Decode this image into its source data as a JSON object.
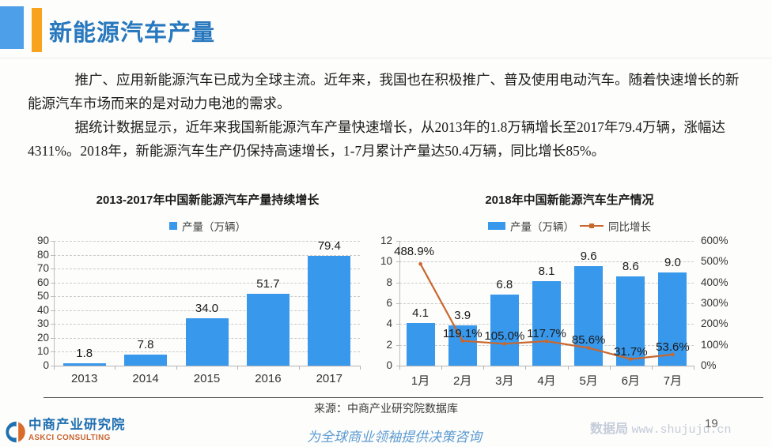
{
  "header": {
    "title": "新能源汽车产量",
    "accent_blue": "#4C9FE8",
    "accent_orange": "#F8A21D",
    "title_color": "#2878BE"
  },
  "body": {
    "paragraph1": "推广、应用新能源汽车已成为全球主流。近年来，我国也在积极推广、普及使用电动汽车。随着快速增长的新能源汽车市场而来的是对动力电池的需求。",
    "paragraph2": "据统计数据显示，近年来我国新能源汽车产量快速增长，从2013年的1.8万辆增长至2017年79.4万辆，涨幅达4311%。2018年，新能源汽车生产仍保持高速增长，1-7月累计产量达50.4万辆，同比增长85%。"
  },
  "chart_data": [
    {
      "type": "bar",
      "title": "2013-2017年中国新能源汽车产量持续增长",
      "legend": [
        {
          "label": "产量（万辆）",
          "color": "#3898EC"
        }
      ],
      "categories": [
        "2013",
        "2014",
        "2015",
        "2016",
        "2017"
      ],
      "values": [
        1.8,
        7.8,
        34.0,
        51.7,
        79.4
      ],
      "value_labels": [
        "1.8",
        "7.8",
        "34.0",
        "51.7",
        "79.4"
      ],
      "ylim": [
        0,
        90
      ],
      "ytick_step": 10,
      "bar_color": "#3898EC",
      "grid": "horizontal-dashed",
      "legend_position": "top"
    },
    {
      "type": "bar+line",
      "title": "2018年中国新能源汽车生产情况",
      "categories": [
        "1月",
        "2月",
        "3月",
        "4月",
        "5月",
        "6月",
        "7月"
      ],
      "series": [
        {
          "name": "产量（万辆）",
          "type": "bar",
          "axis": "left",
          "color": "#3898EC",
          "values": [
            4.1,
            3.9,
            6.8,
            8.1,
            9.6,
            8.6,
            9.0
          ],
          "value_labels": [
            "4.1",
            "3.9",
            "6.8",
            "8.1",
            "9.6",
            "8.6",
            "9.0"
          ]
        },
        {
          "name": "同比增长",
          "type": "line",
          "axis": "right",
          "color": "#C8682E",
          "values_pct": [
            488.9,
            119.1,
            105.0,
            117.7,
            85.6,
            31.7,
            53.6
          ],
          "value_labels": [
            "488.9%",
            "119.1%",
            "105.0%",
            "117.7%",
            "85.6%",
            "31.7%",
            "53.6%"
          ]
        }
      ],
      "left_axis": {
        "lim": [
          0,
          12
        ],
        "step": 2
      },
      "right_axis": {
        "lim_pct": [
          0,
          600
        ],
        "step_pct": 100,
        "tick_labels": [
          "0%",
          "100%",
          "200%",
          "300%",
          "400%",
          "500%",
          "600%"
        ]
      },
      "grid": "horizontal-dashed",
      "legend_position": "top"
    }
  ],
  "source": {
    "text": "来源：中商产业研究院数据库"
  },
  "footer": {
    "logo_title": "中商产业研究院",
    "logo_subtitle": "ASKCI CONSULTING",
    "tagline": "为全球商业领袖提供决策咨询",
    "watermark_site": "数据局",
    "watermark_url": "www.shujuju.cn",
    "page_number": "19"
  }
}
